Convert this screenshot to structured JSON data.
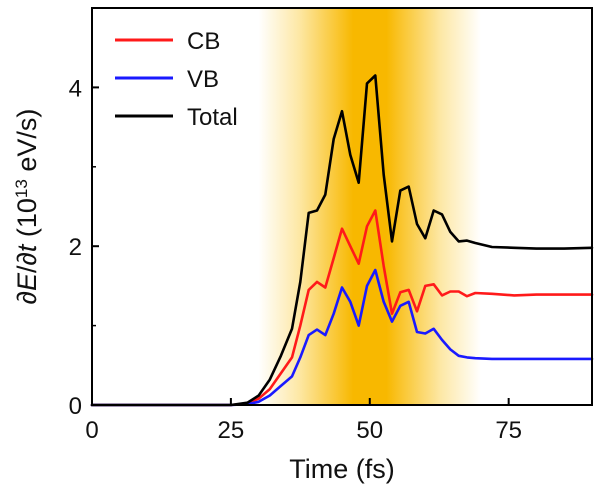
{
  "chart_data": {
    "type": "line",
    "xlabel": "Time (fs)",
    "ylabel": {
      "partial_1": "∂",
      "energy_symbol": "E",
      "slash": "/∂",
      "time_symbol": "t",
      "unit_open": " (10",
      "exponent": "13",
      "unit_close": " eV/s)"
    },
    "xlim": [
      0,
      90
    ],
    "ylim": [
      0,
      5
    ],
    "xticks": [
      0,
      25,
      50,
      75
    ],
    "yticks": [
      0,
      2,
      4
    ],
    "highlight_band": {
      "x_range": [
        30,
        70
      ],
      "peak_x": 50,
      "core_range": [
        47,
        53
      ],
      "colors": {
        "edge": "#ffffff",
        "mid": "#fde8a6",
        "core": "#f8b800"
      }
    },
    "legend_position": "top-left",
    "series": [
      {
        "name": "CB",
        "color": "#ff1a1a",
        "x": [
          0,
          25,
          28,
          30,
          32,
          34,
          36,
          37.5,
          39,
          40.5,
          42,
          43.5,
          45,
          46.5,
          48,
          49.5,
          51,
          52.5,
          54,
          55.5,
          57,
          58.5,
          60,
          61.5,
          63,
          64.5,
          66,
          67.5,
          69,
          72,
          76,
          80,
          85,
          90
        ],
        "y": [
          0,
          0,
          0.02,
          0.08,
          0.2,
          0.4,
          0.6,
          1.0,
          1.45,
          1.55,
          1.48,
          1.85,
          2.22,
          2.0,
          1.78,
          2.25,
          2.45,
          1.75,
          1.15,
          1.42,
          1.45,
          1.18,
          1.5,
          1.52,
          1.38,
          1.43,
          1.43,
          1.37,
          1.41,
          1.4,
          1.38,
          1.39,
          1.39,
          1.39
        ]
      },
      {
        "name": "VB",
        "color": "#1a1aff",
        "x": [
          0,
          25,
          28,
          30,
          32,
          34,
          36,
          37.5,
          39,
          40.5,
          42,
          43.5,
          45,
          46.5,
          48,
          49.5,
          51,
          52.5,
          54,
          55.5,
          57,
          58.5,
          60,
          61.5,
          63,
          64.5,
          66,
          67.5,
          69,
          72,
          76,
          80,
          85,
          90
        ],
        "y": [
          0,
          0,
          0.01,
          0.04,
          0.12,
          0.24,
          0.36,
          0.6,
          0.88,
          0.95,
          0.88,
          1.15,
          1.48,
          1.3,
          1.0,
          1.5,
          1.7,
          1.3,
          1.05,
          1.25,
          1.3,
          0.92,
          0.9,
          0.96,
          0.82,
          0.7,
          0.62,
          0.6,
          0.59,
          0.58,
          0.58,
          0.58,
          0.58,
          0.58
        ]
      },
      {
        "name": "Total",
        "color": "#000000",
        "x": [
          0,
          25,
          28,
          30,
          32,
          34,
          36,
          37.5,
          39,
          40.5,
          42,
          43.5,
          45,
          46.5,
          48,
          49.5,
          51,
          52.5,
          54,
          55.5,
          57,
          58.5,
          60,
          61.5,
          63,
          64.5,
          66,
          67.5,
          69,
          72,
          76,
          80,
          85,
          90
        ],
        "y": [
          0,
          0,
          0.03,
          0.12,
          0.32,
          0.62,
          0.96,
          1.55,
          2.42,
          2.45,
          2.65,
          3.35,
          3.7,
          3.15,
          2.8,
          4.05,
          4.15,
          2.9,
          2.06,
          2.7,
          2.75,
          2.28,
          2.1,
          2.45,
          2.4,
          2.18,
          2.06,
          2.07,
          2.04,
          1.99,
          1.98,
          1.97,
          1.97,
          1.98
        ]
      }
    ]
  }
}
